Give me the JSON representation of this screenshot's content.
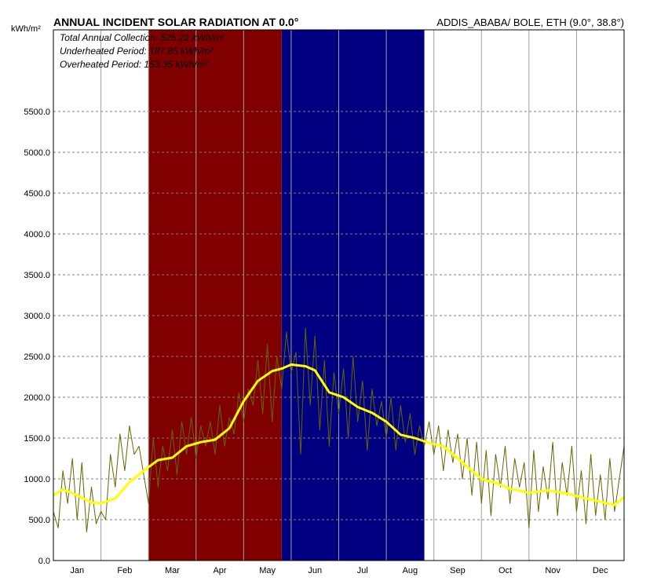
{
  "chart_data": {
    "type": "line",
    "title": "ANNUAL INCIDENT SOLAR RADIATION AT 0.0°",
    "location": "ADDIS_ABABA/ BOLE, ETH (9.0°, 38.8°)",
    "ylabel": "kWh/m²",
    "ylim": [
      0,
      6500
    ],
    "yticks": [
      "0.0",
      "500.0",
      "1000.0",
      "1500.0",
      "2000.0",
      "2500.0",
      "3000.0",
      "3500.0",
      "4000.0",
      "4500.0",
      "5000.0",
      "5500.0"
    ],
    "categories": [
      "Jan",
      "Feb",
      "Mar",
      "Apr",
      "May",
      "Jun",
      "Jul",
      "Aug",
      "Sep",
      "Oct",
      "Nov",
      "Dec"
    ],
    "grid": true,
    "annotations": [
      "Total Annual Collection: 525.22 kWh/m²",
      "Underheated Period: 187.85 kWh/m²",
      "Overheated Period: 153.35 kWh/m²"
    ],
    "periods": [
      {
        "name": "Underheated",
        "from_month": 2,
        "to_month": 4.8,
        "color": "#800000"
      },
      {
        "name": "Overheated",
        "from_month": 4.8,
        "to_month": 7.8,
        "color": "#000080"
      }
    ],
    "series": [
      {
        "kind": "average",
        "color": "#ffff00",
        "x": [
          0,
          0.2,
          0.5,
          0.8,
          1.0,
          1.3,
          1.6,
          1.9,
          2.2,
          2.5,
          2.8,
          3.1,
          3.4,
          3.7,
          4.0,
          4.3,
          4.6,
          4.8,
          5.0,
          5.3,
          5.5,
          5.8,
          6.1,
          6.4,
          6.7,
          7.0,
          7.3,
          7.6,
          7.9,
          8.2,
          8.6,
          9.0,
          9.3,
          9.6,
          10.0,
          10.4,
          10.8,
          11.2,
          11.5,
          11.8,
          12.0
        ],
        "values": [
          800,
          870,
          800,
          710,
          700,
          760,
          960,
          1100,
          1230,
          1260,
          1400,
          1450,
          1480,
          1620,
          1950,
          2200,
          2320,
          2350,
          2400,
          2380,
          2330,
          2060,
          2000,
          1880,
          1810,
          1700,
          1540,
          1500,
          1440,
          1400,
          1200,
          1000,
          950,
          880,
          830,
          860,
          820,
          760,
          720,
          680,
          780
        ]
      },
      {
        "kind": "daily",
        "color": "#666600",
        "x": [
          0,
          0.1,
          0.2,
          0.3,
          0.4,
          0.5,
          0.6,
          0.7,
          0.8,
          0.9,
          1.0,
          1.1,
          1.2,
          1.3,
          1.4,
          1.5,
          1.6,
          1.7,
          1.8,
          1.9,
          2.0,
          2.1,
          2.2,
          2.3,
          2.4,
          2.5,
          2.6,
          2.7,
          2.8,
          2.9,
          3.0,
          3.1,
          3.2,
          3.3,
          3.4,
          3.5,
          3.6,
          3.7,
          3.8,
          3.9,
          4.0,
          4.1,
          4.2,
          4.3,
          4.4,
          4.5,
          4.6,
          4.7,
          4.8,
          4.9,
          5.0,
          5.1,
          5.2,
          5.3,
          5.4,
          5.5,
          5.6,
          5.7,
          5.8,
          5.9,
          6.0,
          6.1,
          6.2,
          6.3,
          6.4,
          6.5,
          6.6,
          6.7,
          6.8,
          6.9,
          7.0,
          7.1,
          7.2,
          7.3,
          7.4,
          7.5,
          7.6,
          7.7,
          7.8,
          7.9,
          8.0,
          8.1,
          8.2,
          8.3,
          8.4,
          8.5,
          8.6,
          8.7,
          8.8,
          8.9,
          9.0,
          9.1,
          9.2,
          9.3,
          9.4,
          9.5,
          9.6,
          9.7,
          9.8,
          9.9,
          10.0,
          10.1,
          10.2,
          10.3,
          10.4,
          10.5,
          10.6,
          10.7,
          10.8,
          10.9,
          11.0,
          11.1,
          11.2,
          11.3,
          11.4,
          11.5,
          11.6,
          11.7,
          11.8,
          11.9,
          12.0
        ],
        "values": [
          600,
          400,
          1100,
          700,
          1250,
          500,
          1200,
          350,
          900,
          450,
          600,
          500,
          1300,
          900,
          1550,
          1100,
          1650,
          1300,
          1400,
          1050,
          700,
          1500,
          900,
          1400,
          1100,
          1600,
          1050,
          1700,
          1300,
          1750,
          1250,
          1650,
          1400,
          1700,
          1300,
          1900,
          1400,
          1750,
          1550,
          2050,
          1700,
          2100,
          1900,
          2450,
          1800,
          2650,
          1700,
          2500,
          2100,
          2800,
          2300,
          2550,
          1300,
          2850,
          1900,
          2750,
          1600,
          2450,
          1400,
          2300,
          1800,
          2350,
          1500,
          2500,
          1700,
          2200,
          1350,
          2100,
          1650,
          1950,
          1500,
          2000,
          1350,
          1900,
          1450,
          1800,
          1300,
          1650,
          1400,
          1700,
          1300,
          1650,
          1100,
          1600,
          1200,
          1550,
          1000,
          1500,
          800,
          1450,
          700,
          1350,
          550,
          1300,
          900,
          1400,
          700,
          1250,
          900,
          1200,
          400,
          1350,
          600,
          1150,
          750,
          1450,
          550,
          1200,
          800,
          1400,
          600,
          1100,
          450,
          1300,
          550,
          1050,
          500,
          1250,
          600,
          1000,
          1400
        ]
      }
    ]
  }
}
